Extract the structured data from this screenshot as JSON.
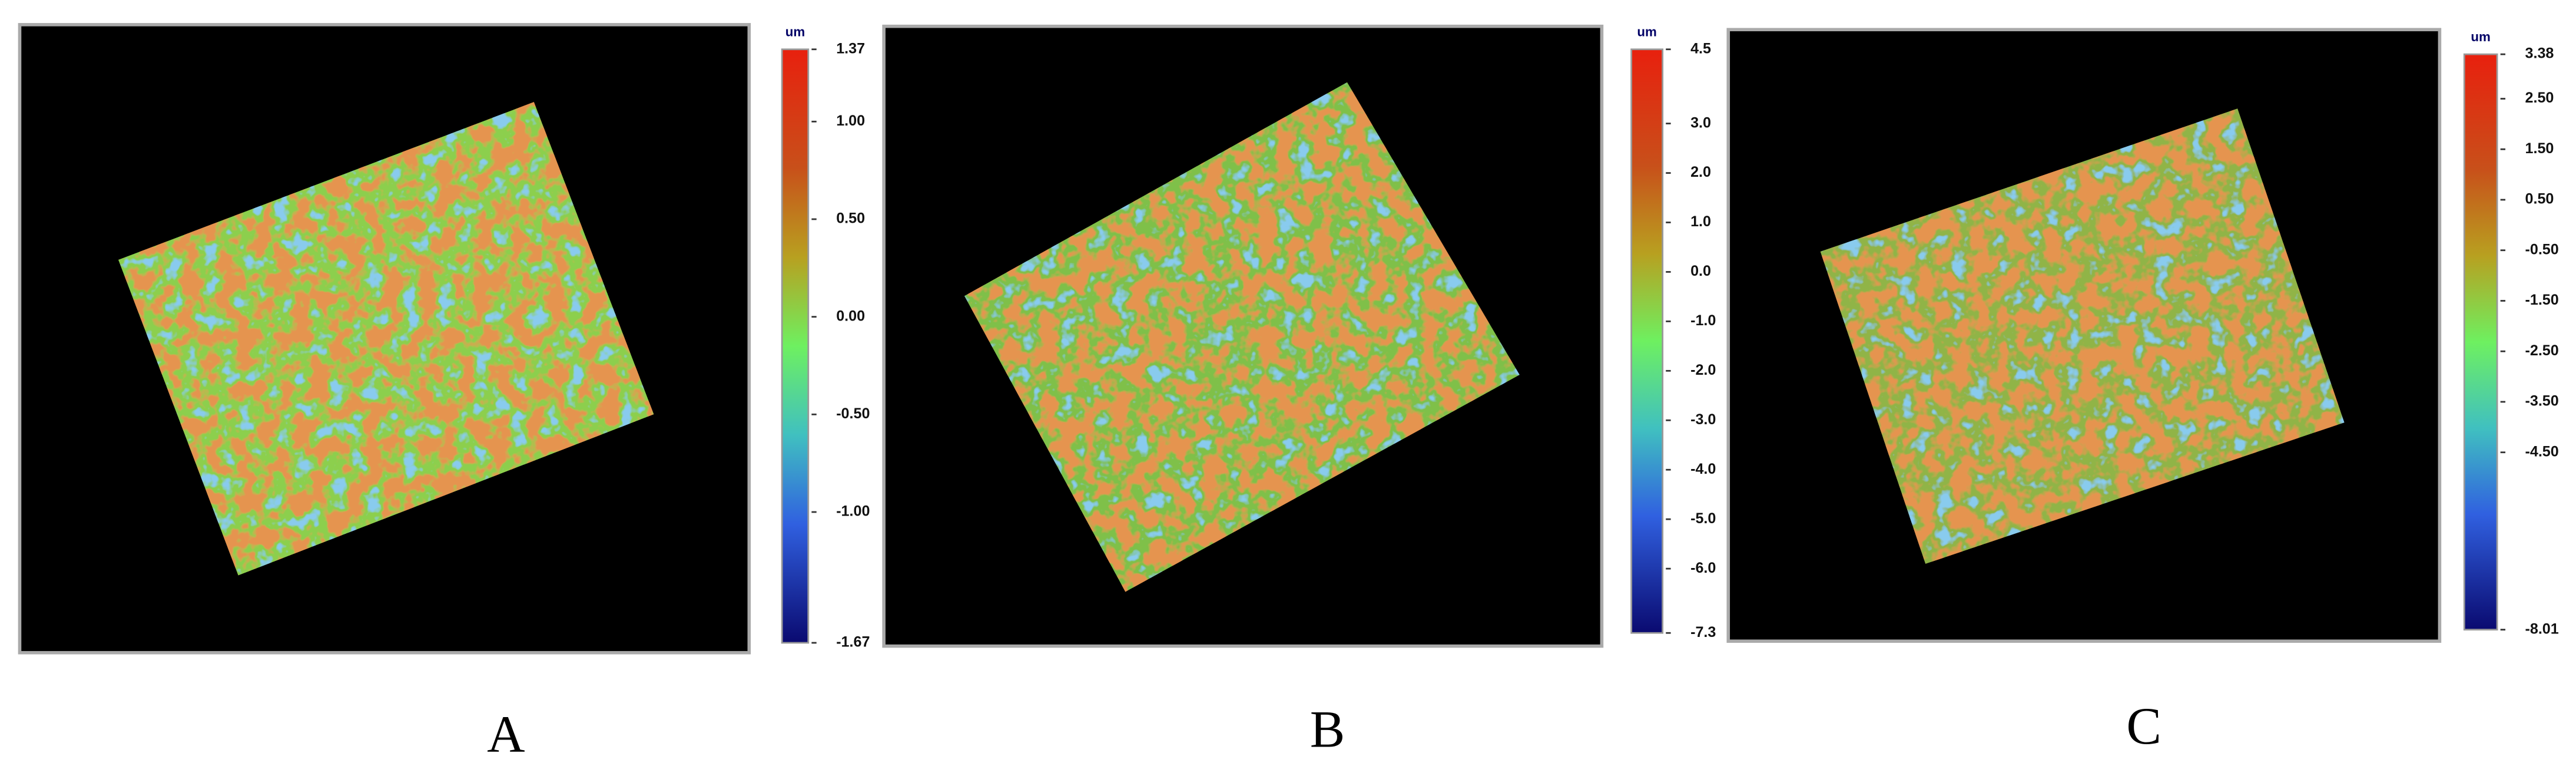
{
  "panels": [
    {
      "label": "A",
      "unit": "um",
      "scale": {
        "ticks": [
          1.37,
          {
            "value": 1,
            "label": "1.00"
          },
          {
            "value": 0.5,
            "label": "0.50"
          },
          {
            "value": 0,
            "label": "0.00"
          },
          {
            "value": -0.5,
            "label": "-0.50"
          },
          {
            "value": -1,
            "label": "-1.00"
          },
          -1.67
        ]
      }
    },
    {
      "label": "B",
      "unit": "um",
      "scale": {
        "ticks": [
          4.5,
          {
            "value": 3,
            "label": "3.0"
          },
          {
            "value": 2,
            "label": "2.0"
          },
          {
            "value": 1,
            "label": "1.0"
          },
          {
            "value": 0,
            "label": "0.0"
          },
          {
            "value": -1,
            "label": "-1.0"
          },
          {
            "value": -2,
            "label": "-2.0"
          },
          {
            "value": -3,
            "label": "-3.0"
          },
          {
            "value": -4,
            "label": "-4.0"
          },
          {
            "value": -5,
            "label": "-5.0"
          },
          {
            "value": -6,
            "label": "-6.0"
          },
          -7.3
        ]
      }
    },
    {
      "label": "C",
      "unit": "um",
      "scale": {
        "ticks": [
          3.38,
          {
            "value": 2.5,
            "label": "2.50"
          },
          {
            "value": 1.5,
            "label": "1.50"
          },
          {
            "value": 0.5,
            "label": "0.50"
          },
          {
            "value": -0.5,
            "label": "-0.50"
          },
          {
            "value": -1.5,
            "label": "-1.50"
          },
          {
            "value": -2.5,
            "label": "-2.50"
          },
          {
            "value": -3.5,
            "label": "-3.50"
          },
          {
            "value": -4.5,
            "label": "-4.50"
          },
          -8.01
        ]
      }
    }
  ]
}
